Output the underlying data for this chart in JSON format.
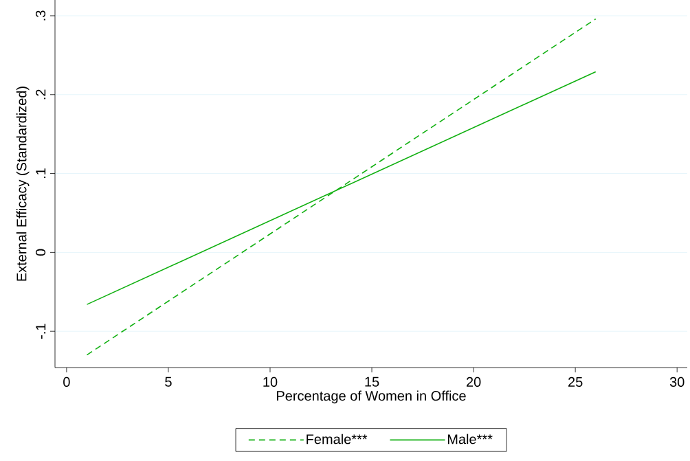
{
  "chart_data": {
    "type": "line",
    "xlabel": "Percentage of Women in Office",
    "ylabel": "External Efficacy (Standardized)",
    "xlim": [
      -0.57,
      30.5
    ],
    "ylim": [
      -0.146,
      0.32
    ],
    "xticks": [
      0,
      5,
      10,
      15,
      20,
      25,
      30
    ],
    "yticks": [
      {
        "value": -0.1,
        "label": "-.1"
      },
      {
        "value": 0,
        "label": "0"
      },
      {
        "value": 0.1,
        "label": ".1"
      },
      {
        "value": 0.2,
        "label": ".2"
      },
      {
        "value": 0.3,
        "label": ".3"
      }
    ],
    "grid": "y",
    "legend": "bottom",
    "x": [
      1,
      26
    ],
    "series": [
      {
        "name": "Female***",
        "color": "#10b010",
        "line_style": "dashed",
        "values": [
          -0.13,
          0.296
        ]
      },
      {
        "name": "Male***",
        "color": "#10b010",
        "line_style": "solid",
        "values": [
          -0.066,
          0.229
        ]
      }
    ]
  }
}
